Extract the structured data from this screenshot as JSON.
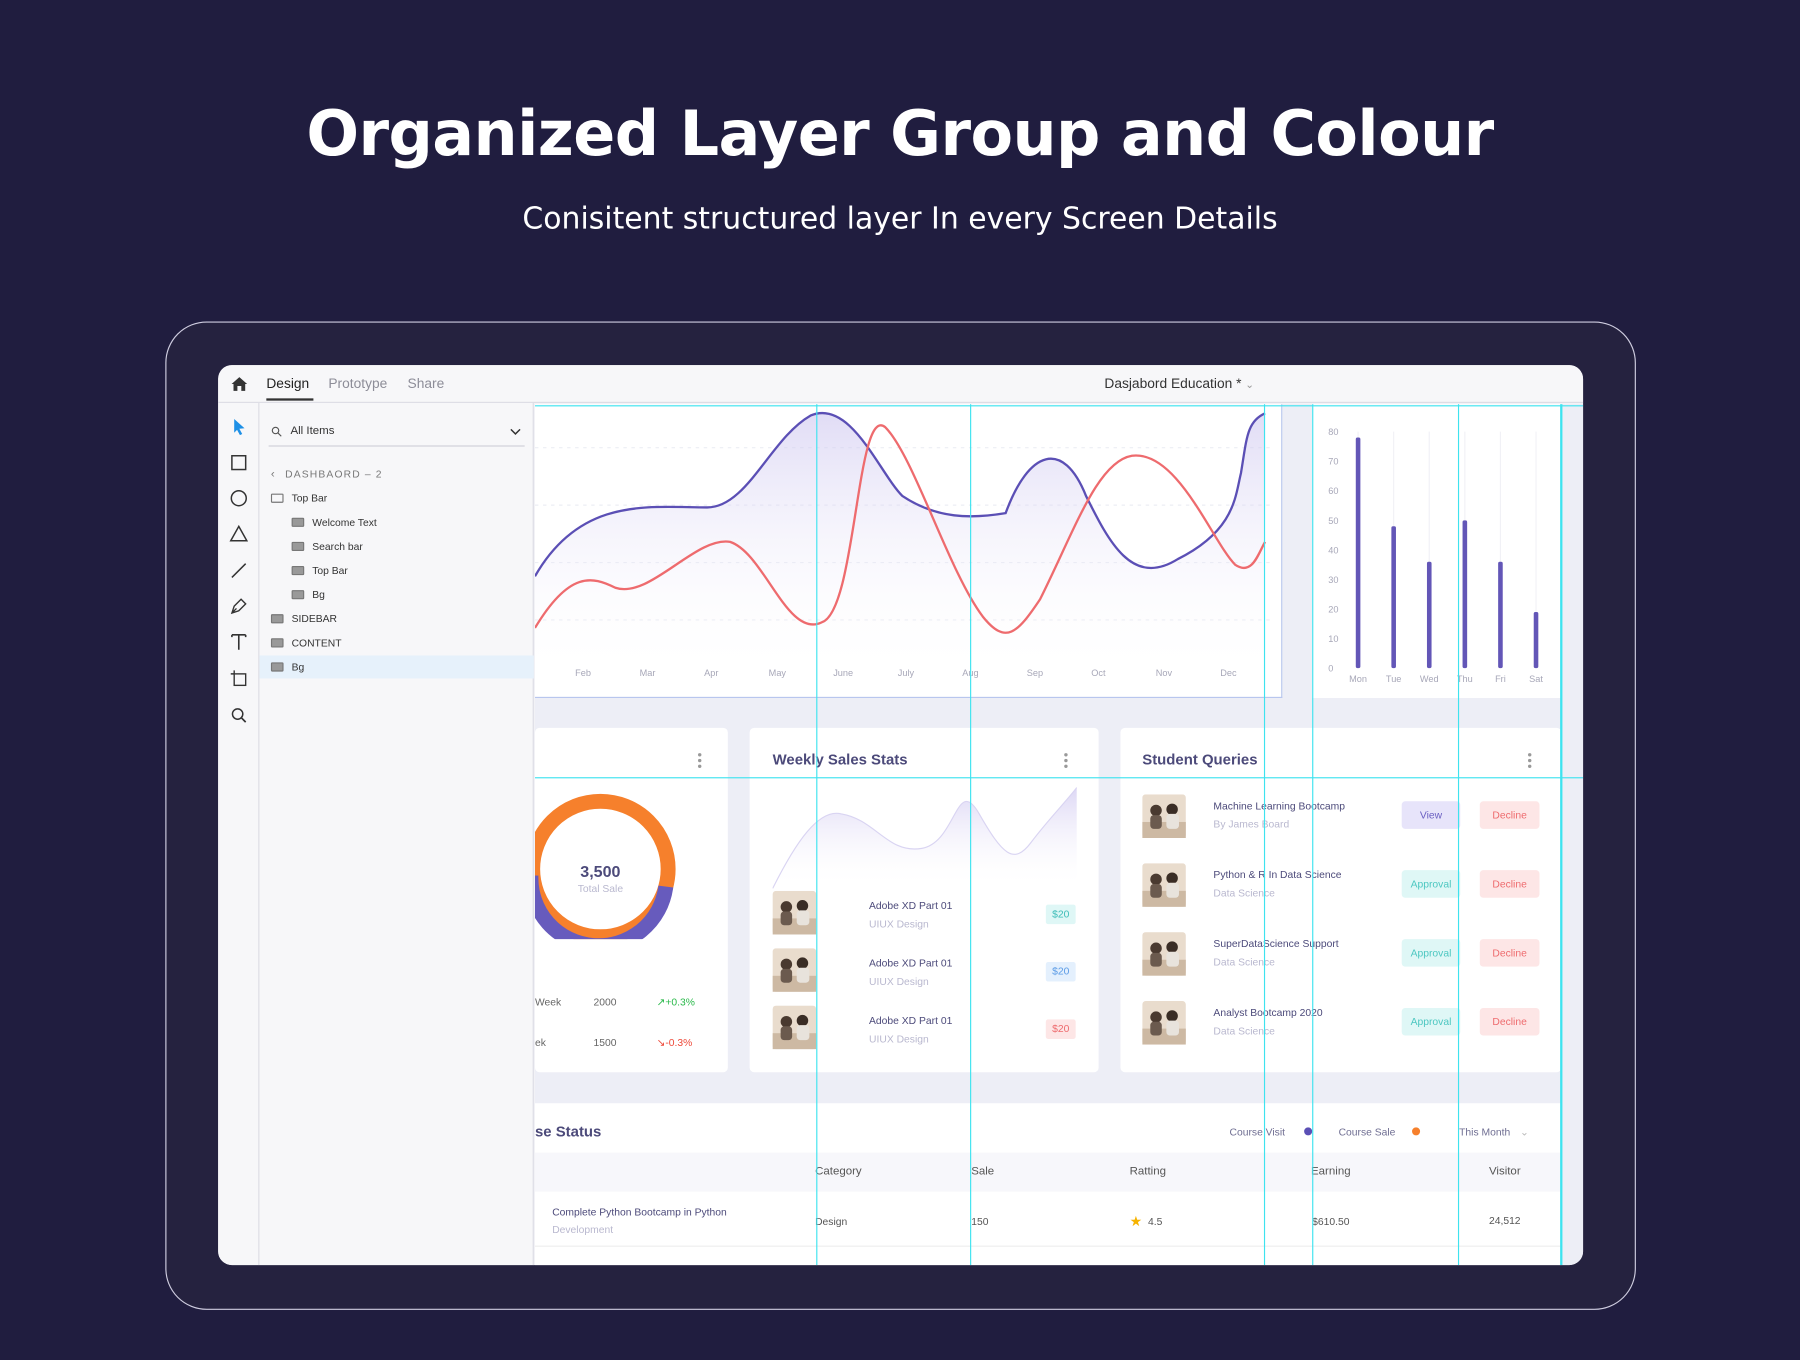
{
  "header": {
    "title": "Organized Layer Group and Colour",
    "subtitle": "Conisitent structured layer In every Screen Details"
  },
  "app": {
    "tabs": [
      "Design",
      "Prototype",
      "Share"
    ],
    "active_tab": "Design",
    "document_title": "Dasjabord Education *",
    "tools": [
      "select-tool-icon",
      "rectangle-tool-icon",
      "ellipse-tool-icon",
      "triangle-tool-icon",
      "line-tool-icon",
      "pen-tool-icon",
      "text-tool-icon",
      "artboard-tool-icon",
      "zoom-tool-icon"
    ]
  },
  "layers": {
    "search_label": "All Items",
    "breadcrumb": "DASHBAORD – 2",
    "items": [
      {
        "label": "Top Bar",
        "depth": 0
      },
      {
        "label": "Welcome Text",
        "depth": 1
      },
      {
        "label": "Search bar",
        "depth": 1
      },
      {
        "label": "Top Bar",
        "depth": 1
      },
      {
        "label": "Bg",
        "depth": 1
      },
      {
        "label": "SIDEBAR",
        "depth": 0
      },
      {
        "label": "CONTENT",
        "depth": 0
      },
      {
        "label": "Bg",
        "depth": 0,
        "selected": true
      }
    ]
  },
  "line_chart": {
    "months": [
      "Feb",
      "Mar",
      "Apr",
      "May",
      "June",
      "July",
      "Aug",
      "Sep",
      "Oct",
      "Nov",
      "Dec"
    ],
    "colors": {
      "series_a": "#5b4fb5",
      "series_b": "#ee6b6e"
    }
  },
  "chart_data": {
    "type": "bar",
    "categories": [
      "Mon",
      "Tue",
      "Wed",
      "Thu",
      "Fri",
      "Sat"
    ],
    "values": [
      78,
      48,
      36,
      50,
      36,
      19
    ],
    "yticks": [
      "80",
      "70",
      "60",
      "50",
      "40",
      "30",
      "20",
      "10",
      "0"
    ],
    "ylim": [
      0,
      80
    ]
  },
  "donut": {
    "value": "3,500",
    "label": "Total Sale",
    "rows": [
      {
        "label": "Week",
        "value": "2000",
        "change": "+0.3%",
        "trend": "up"
      },
      {
        "label": "ek",
        "value": "1500",
        "change": "-0.3%",
        "trend": "down"
      }
    ]
  },
  "weekly": {
    "title": "Weekly Sales Stats",
    "items": [
      {
        "title": "Adobe XD Part 01",
        "subtitle": "UIUX Design",
        "price": "$20",
        "tone": "teal"
      },
      {
        "title": "Adobe XD Part 01",
        "subtitle": "UIUX Design",
        "price": "$20",
        "tone": "blue"
      },
      {
        "title": "Adobe XD Part 01",
        "subtitle": "UIUX Design",
        "price": "$20",
        "tone": "red"
      }
    ]
  },
  "queries": {
    "title": "Student Queries",
    "items": [
      {
        "title": "Machine Learning Bootcamp",
        "subtitle": "By James Board",
        "action": "View",
        "decline": "Decline"
      },
      {
        "title": "Python & R In Data Science",
        "subtitle": "Data Science",
        "action": "Approval",
        "decline": "Decline"
      },
      {
        "title": "SuperDataScience Support",
        "subtitle": "Data Science",
        "action": "Approval",
        "decline": "Decline"
      },
      {
        "title": "Analyst Bootcamp 2020",
        "subtitle": "Data Science",
        "action": "Approval",
        "decline": "Decline"
      }
    ]
  },
  "status": {
    "title": "se Status",
    "legend": [
      {
        "label": "Course Visit",
        "color": "#5b4fb5"
      },
      {
        "label": "Course Sale",
        "color": "#f6802c"
      }
    ],
    "period": "This Month",
    "columns": [
      "Category",
      "Sale",
      "Ratting",
      "Earning",
      "Visitor"
    ],
    "row": {
      "course": "Complete Python Bootcamp in Python",
      "course_sub": "Development",
      "category": "Design",
      "sale": "150",
      "rating": "4.5",
      "earning": "$610.50",
      "visitor": "24,512"
    }
  }
}
